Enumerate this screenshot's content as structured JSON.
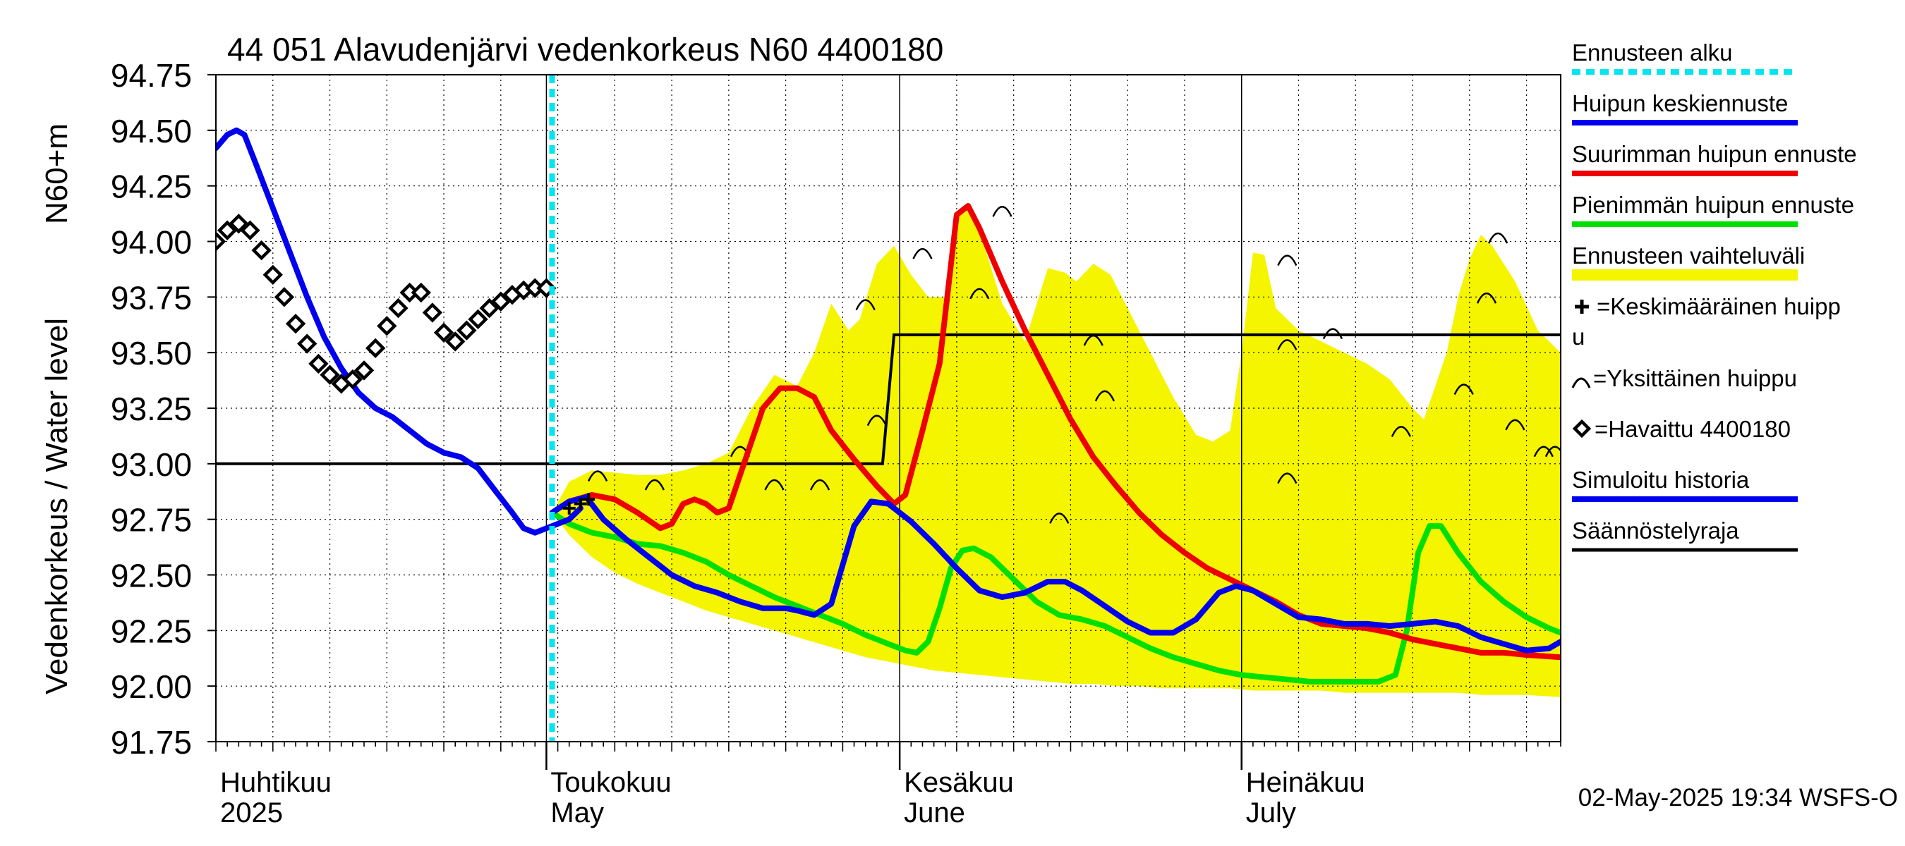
{
  "chart_data": {
    "type": "line",
    "title": "44 051 Alavudenjärvi vedenkorkeus N60 4400180",
    "ylabel_left": "Vedenkorkeus / Water level",
    "ylabel_unit": "N60+m",
    "timestamp": "02-May-2025 19:34 WSFS-O",
    "ylim": [
      91.75,
      94.75
    ],
    "y_ticks": [
      "91.75",
      "92.00",
      "92.25",
      "92.50",
      "92.75",
      "93.00",
      "93.25",
      "93.50",
      "93.75",
      "94.00",
      "94.25",
      "94.50",
      "94.75"
    ],
    "x_domain": [
      0,
      118
    ],
    "months": [
      {
        "fi": "Huhtikuu",
        "en": "2025",
        "day": 0
      },
      {
        "fi": "Toukokuu",
        "en": "May",
        "day": 29
      },
      {
        "fi": "Kesäkuu",
        "en": "June",
        "day": 60
      },
      {
        "fi": "Heinäkuu",
        "en": "July",
        "day": 90
      }
    ],
    "month_starts": [
      29,
      60,
      90
    ],
    "forecast_start": 29.5,
    "colors": {
      "forecast_start": "#00e5ee",
      "median": "#0000ee",
      "max": "#ee0000",
      "min": "#00e000",
      "band": "#f5f500",
      "regulation": "#000000",
      "history": "#0000ee"
    },
    "legend": [
      {
        "label": "Ennusteen alku",
        "style": "dotted-cyan"
      },
      {
        "label": "Huipun keskiennuste",
        "style": "blue"
      },
      {
        "label": "Suurimman huipun ennuste",
        "style": "red"
      },
      {
        "label": "Pienimmän huipun ennuste",
        "style": "green"
      },
      {
        "label": "Ennusteen vaihteluväli",
        "style": "yellow"
      },
      {
        "label": "=Keskimääräinen huipp",
        "label2": "u",
        "style": "plus"
      },
      {
        "label": "=Yksittäinen huippu",
        "style": "arc"
      },
      {
        "label": "=Havaittu 4400180",
        "style": "diamond"
      },
      {
        "label": "Simuloitu historia",
        "style": "blue"
      },
      {
        "label": "Säännöstelyraja",
        "style": "black"
      }
    ],
    "series": {
      "history": [
        [
          0,
          94.42
        ],
        [
          1,
          94.48
        ],
        [
          1.8,
          94.5
        ],
        [
          2.5,
          94.48
        ],
        [
          3.5,
          94.35
        ],
        [
          5,
          94.15
        ],
        [
          6.5,
          93.95
        ],
        [
          8,
          93.75
        ],
        [
          9.5,
          93.57
        ],
        [
          11,
          93.43
        ],
        [
          12.5,
          93.32
        ],
        [
          14,
          93.25
        ],
        [
          15.5,
          93.21
        ],
        [
          17,
          93.15
        ],
        [
          18.5,
          93.09
        ],
        [
          20,
          93.05
        ],
        [
          21.5,
          93.03
        ],
        [
          23,
          92.98
        ],
        [
          24.5,
          92.88
        ],
        [
          26,
          92.78
        ],
        [
          27,
          92.71
        ],
        [
          28,
          92.69
        ],
        [
          29,
          92.71
        ],
        [
          30,
          92.73
        ],
        [
          31,
          92.75
        ],
        [
          32,
          92.8
        ]
      ],
      "observed": [
        [
          0,
          94.0
        ],
        [
          1,
          94.05
        ],
        [
          2,
          94.08
        ],
        [
          3,
          94.05
        ],
        [
          4,
          93.96
        ],
        [
          5,
          93.85
        ],
        [
          6,
          93.75
        ],
        [
          7,
          93.63
        ],
        [
          8,
          93.54
        ],
        [
          9,
          93.45
        ],
        [
          10,
          93.4
        ],
        [
          11,
          93.36
        ],
        [
          12,
          93.38
        ],
        [
          13,
          93.42
        ],
        [
          14,
          93.52
        ],
        [
          15,
          93.62
        ],
        [
          16,
          93.7
        ],
        [
          17,
          93.77
        ],
        [
          18,
          93.77
        ],
        [
          19,
          93.68
        ],
        [
          20,
          93.59
        ],
        [
          21,
          93.55
        ],
        [
          22,
          93.6
        ],
        [
          23,
          93.65
        ],
        [
          24,
          93.7
        ],
        [
          25,
          93.73
        ],
        [
          26,
          93.76
        ],
        [
          27,
          93.78
        ],
        [
          28,
          93.79
        ],
        [
          29,
          93.79
        ]
      ],
      "median": [
        [
          29.5,
          92.78
        ],
        [
          31,
          92.83
        ],
        [
          32.5,
          92.85
        ],
        [
          34,
          92.75
        ],
        [
          36,
          92.66
        ],
        [
          38,
          92.58
        ],
        [
          40,
          92.5
        ],
        [
          42,
          92.45
        ],
        [
          44,
          92.42
        ],
        [
          46,
          92.38
        ],
        [
          48,
          92.35
        ],
        [
          50,
          92.35
        ],
        [
          51,
          92.34
        ],
        [
          52.5,
          92.32
        ],
        [
          54,
          92.37
        ],
        [
          56,
          92.72
        ],
        [
          57.5,
          92.83
        ],
        [
          59,
          92.82
        ],
        [
          61,
          92.74
        ],
        [
          63,
          92.64
        ],
        [
          65,
          92.53
        ],
        [
          67,
          92.43
        ],
        [
          69,
          92.4
        ],
        [
          71,
          92.42
        ],
        [
          73,
          92.47
        ],
        [
          74.5,
          92.47
        ],
        [
          76,
          92.43
        ],
        [
          78,
          92.36
        ],
        [
          80,
          92.29
        ],
        [
          82,
          92.24
        ],
        [
          84,
          92.24
        ],
        [
          86,
          92.3
        ],
        [
          88,
          92.42
        ],
        [
          89.5,
          92.45
        ],
        [
          91,
          92.43
        ],
        [
          93,
          92.37
        ],
        [
          95,
          92.31
        ],
        [
          97,
          92.3
        ],
        [
          99,
          92.28
        ],
        [
          101,
          92.28
        ],
        [
          103,
          92.27
        ],
        [
          105,
          92.28
        ],
        [
          107,
          92.29
        ],
        [
          109,
          92.27
        ],
        [
          111,
          92.22
        ],
        [
          113,
          92.19
        ],
        [
          115,
          92.16
        ],
        [
          117,
          92.17
        ],
        [
          118,
          92.2
        ]
      ],
      "max": [
        [
          29.5,
          92.78
        ],
        [
          31,
          92.83
        ],
        [
          33,
          92.86
        ],
        [
          35,
          92.84
        ],
        [
          37,
          92.78
        ],
        [
          39,
          92.71
        ],
        [
          40,
          92.73
        ],
        [
          41,
          92.82
        ],
        [
          42,
          92.84
        ],
        [
          43,
          92.82
        ],
        [
          44,
          92.78
        ],
        [
          45,
          92.8
        ],
        [
          46,
          92.95
        ],
        [
          48,
          93.25
        ],
        [
          49.5,
          93.34
        ],
        [
          51,
          93.34
        ],
        [
          52.5,
          93.3
        ],
        [
          54,
          93.15
        ],
        [
          56,
          93.02
        ],
        [
          58,
          92.9
        ],
        [
          59.5,
          92.82
        ],
        [
          60.5,
          92.86
        ],
        [
          62,
          93.15
        ],
        [
          63.5,
          93.45
        ],
        [
          65,
          94.12
        ],
        [
          66,
          94.16
        ],
        [
          67,
          94.06
        ],
        [
          69,
          93.82
        ],
        [
          71,
          93.6
        ],
        [
          73,
          93.4
        ],
        [
          75,
          93.2
        ],
        [
          77,
          93.03
        ],
        [
          79,
          92.9
        ],
        [
          81,
          92.78
        ],
        [
          83,
          92.68
        ],
        [
          85,
          92.6
        ],
        [
          87,
          92.53
        ],
        [
          89,
          92.48
        ],
        [
          91,
          92.43
        ],
        [
          93,
          92.38
        ],
        [
          95,
          92.32
        ],
        [
          97,
          92.28
        ],
        [
          99,
          92.27
        ],
        [
          101,
          92.26
        ],
        [
          103,
          92.24
        ],
        [
          105,
          92.21
        ],
        [
          107,
          92.19
        ],
        [
          109,
          92.17
        ],
        [
          111,
          92.15
        ],
        [
          113,
          92.15
        ],
        [
          115,
          92.14
        ],
        [
          118,
          92.13
        ]
      ],
      "min": [
        [
          29.5,
          92.78
        ],
        [
          31,
          92.73
        ],
        [
          33,
          92.69
        ],
        [
          35,
          92.67
        ],
        [
          37,
          92.64
        ],
        [
          39,
          92.63
        ],
        [
          41,
          92.6
        ],
        [
          43,
          92.56
        ],
        [
          45,
          92.5
        ],
        [
          47,
          92.45
        ],
        [
          49,
          92.4
        ],
        [
          51,
          92.36
        ],
        [
          53,
          92.32
        ],
        [
          55,
          92.28
        ],
        [
          57,
          92.23
        ],
        [
          59,
          92.19
        ],
        [
          60.5,
          92.16
        ],
        [
          61.5,
          92.15
        ],
        [
          62.5,
          92.2
        ],
        [
          63.5,
          92.35
        ],
        [
          64.5,
          92.53
        ],
        [
          65.5,
          92.61
        ],
        [
          66.5,
          92.62
        ],
        [
          68,
          92.58
        ],
        [
          70,
          92.48
        ],
        [
          72,
          92.38
        ],
        [
          74,
          92.32
        ],
        [
          76,
          92.3
        ],
        [
          78,
          92.27
        ],
        [
          80,
          92.22
        ],
        [
          82,
          92.17
        ],
        [
          84,
          92.13
        ],
        [
          86,
          92.1
        ],
        [
          88,
          92.07
        ],
        [
          90,
          92.05
        ],
        [
          92,
          92.04
        ],
        [
          94,
          92.03
        ],
        [
          96,
          92.02
        ],
        [
          98,
          92.02
        ],
        [
          100,
          92.02
        ],
        [
          102,
          92.02
        ],
        [
          103.5,
          92.05
        ],
        [
          104.5,
          92.25
        ],
        [
          105.5,
          92.6
        ],
        [
          106.5,
          92.72
        ],
        [
          107.5,
          92.72
        ],
        [
          109,
          92.6
        ],
        [
          111,
          92.47
        ],
        [
          113,
          92.38
        ],
        [
          115,
          92.31
        ],
        [
          117,
          92.26
        ],
        [
          118,
          92.24
        ]
      ],
      "band_upper": [
        [
          29.5,
          92.78
        ],
        [
          31,
          92.92
        ],
        [
          33,
          92.97
        ],
        [
          35,
          92.96
        ],
        [
          37,
          92.95
        ],
        [
          39,
          92.95
        ],
        [
          41,
          92.97
        ],
        [
          43,
          93.0
        ],
        [
          45,
          93.05
        ],
        [
          47,
          93.25
        ],
        [
          49,
          93.4
        ],
        [
          51,
          93.35
        ],
        [
          52.5,
          93.5
        ],
        [
          54,
          93.72
        ],
        [
          55.5,
          93.6
        ],
        [
          56.5,
          93.65
        ],
        [
          58,
          93.9
        ],
        [
          59.5,
          93.98
        ],
        [
          61,
          93.85
        ],
        [
          62.5,
          93.75
        ],
        [
          64,
          93.75
        ],
        [
          65,
          94.13
        ],
        [
          66,
          94.16
        ],
        [
          67,
          94.05
        ],
        [
          69,
          93.72
        ],
        [
          71,
          93.55
        ],
        [
          73,
          93.88
        ],
        [
          74.5,
          93.86
        ],
        [
          75.5,
          93.82
        ],
        [
          77,
          93.9
        ],
        [
          78.5,
          93.85
        ],
        [
          80,
          93.7
        ],
        [
          82,
          93.5
        ],
        [
          84,
          93.3
        ],
        [
          86,
          93.13
        ],
        [
          87.5,
          93.1
        ],
        [
          89,
          93.15
        ],
        [
          90,
          93.5
        ],
        [
          91,
          93.95
        ],
        [
          92,
          93.94
        ],
        [
          93,
          93.7
        ],
        [
          95,
          93.6
        ],
        [
          97,
          93.55
        ],
        [
          99,
          93.5
        ],
        [
          101,
          93.45
        ],
        [
          103,
          93.38
        ],
        [
          105,
          93.25
        ],
        [
          106,
          93.2
        ],
        [
          107,
          93.35
        ],
        [
          108,
          93.5
        ],
        [
          109,
          93.75
        ],
        [
          110,
          93.92
        ],
        [
          111,
          94.03
        ],
        [
          112,
          93.98
        ],
        [
          114,
          93.82
        ],
        [
          116,
          93.6
        ],
        [
          118,
          93.5
        ]
      ],
      "band_lower": [
        [
          29.5,
          92.78
        ],
        [
          31,
          92.68
        ],
        [
          33,
          92.58
        ],
        [
          35,
          92.51
        ],
        [
          37,
          92.46
        ],
        [
          39,
          92.42
        ],
        [
          41,
          92.38
        ],
        [
          43,
          92.34
        ],
        [
          45,
          92.31
        ],
        [
          47,
          92.28
        ],
        [
          49,
          92.25
        ],
        [
          51,
          92.22
        ],
        [
          53,
          92.19
        ],
        [
          55,
          92.16
        ],
        [
          57,
          92.13
        ],
        [
          59,
          92.11
        ],
        [
          61,
          92.09
        ],
        [
          63,
          92.07
        ],
        [
          65,
          92.06
        ],
        [
          67,
          92.05
        ],
        [
          69,
          92.04
        ],
        [
          71,
          92.03
        ],
        [
          73,
          92.02
        ],
        [
          75,
          92.01
        ],
        [
          77,
          92.01
        ],
        [
          79,
          92.0
        ],
        [
          81,
          92.0
        ],
        [
          83,
          91.99
        ],
        [
          85,
          91.99
        ],
        [
          87,
          91.99
        ],
        [
          89,
          91.99
        ],
        [
          91,
          91.98
        ],
        [
          93,
          91.98
        ],
        [
          95,
          91.98
        ],
        [
          97,
          91.98
        ],
        [
          99,
          91.97
        ],
        [
          101,
          91.97
        ],
        [
          103,
          91.97
        ],
        [
          105,
          91.97
        ],
        [
          107,
          91.97
        ],
        [
          109,
          91.97
        ],
        [
          111,
          91.96
        ],
        [
          113,
          91.96
        ],
        [
          115,
          91.96
        ],
        [
          118,
          91.95
        ]
      ],
      "regulation": [
        [
          0,
          93.0
        ],
        [
          58.5,
          93.0
        ],
        [
          59.5,
          93.58
        ],
        [
          118,
          93.58
        ]
      ],
      "single_peaks": [
        [
          33.5,
          92.96
        ],
        [
          38.5,
          92.92
        ],
        [
          46,
          93.07
        ],
        [
          49,
          92.92
        ],
        [
          53,
          92.92
        ],
        [
          57,
          93.73
        ],
        [
          58,
          93.21
        ],
        [
          62,
          93.96
        ],
        [
          67,
          93.78
        ],
        [
          69,
          94.15
        ],
        [
          74,
          92.77
        ],
        [
          77,
          93.57
        ],
        [
          78,
          93.32
        ],
        [
          94,
          93.93
        ],
        [
          94,
          93.55
        ],
        [
          94,
          92.95
        ],
        [
          98,
          93.6
        ],
        [
          104,
          93.16
        ],
        [
          109.5,
          93.35
        ],
        [
          111.5,
          93.76
        ],
        [
          112.5,
          94.03
        ],
        [
          114,
          93.19
        ],
        [
          116.5,
          93.07
        ],
        [
          117.5,
          93.07
        ]
      ],
      "mean_peak_marks": [
        [
          31,
          92.8
        ],
        [
          32,
          92.82
        ],
        [
          32.7,
          92.84
        ]
      ]
    }
  }
}
